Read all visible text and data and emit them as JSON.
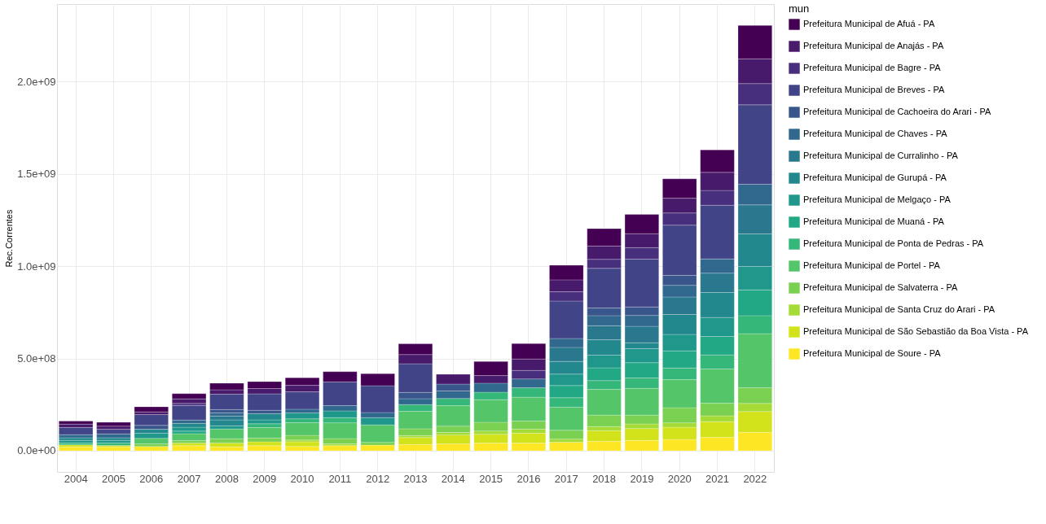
{
  "chart_data": {
    "type": "bar",
    "stacked": true,
    "ylabel": "Rec.Correntes",
    "legend_title": "mun",
    "legend": "right",
    "grid": true,
    "categories": [
      "2004",
      "2005",
      "2006",
      "2007",
      "2008",
      "2009",
      "2010",
      "2011",
      "2012",
      "2013",
      "2014",
      "2015",
      "2016",
      "2017",
      "2018",
      "2019",
      "2020",
      "2021",
      "2022"
    ],
    "ylim": [
      -115000000,
      2420000000
    ],
    "yticks": [
      {
        "value": 0,
        "label": "0.0e+00"
      },
      {
        "value": 500000000,
        "label": "5.0e+08"
      },
      {
        "value": 1000000000,
        "label": "1.0e+09"
      },
      {
        "value": 1500000000,
        "label": "1.5e+09"
      },
      {
        "value": 2000000000,
        "label": "2.0e+09"
      }
    ],
    "series": [
      {
        "name": "Prefeitura Municipal de Soure - PA",
        "color": "#fde725",
        "values": [
          21000000,
          21000000,
          23000000,
          27000000,
          21000000,
          27000000,
          23000000,
          27000000,
          30000000,
          34000000,
          37000000,
          41000000,
          41000000,
          46000000,
          51000000,
          56000000,
          61000000,
          72000000,
          100000000
        ]
      },
      {
        "name": "Prefeitura Municipal de São Sebastião da Boa Vista - PA",
        "color": "#d2e21b",
        "values": [
          11000000,
          7000000,
          null,
          14000000,
          21000000,
          21000000,
          25000000,
          null,
          null,
          37000000,
          48000000,
          48000000,
          54000000,
          null,
          58000000,
          64000000,
          66000000,
          85000000,
          112000000
        ]
      },
      {
        "name": "Prefeitura Municipal de Santa Cruz do Arari - PA",
        "color": "#a5db36",
        "values": [
          null,
          null,
          null,
          null,
          null,
          null,
          10000000,
          10000000,
          null,
          11000000,
          14000000,
          18000000,
          22000000,
          17000000,
          22000000,
          25000000,
          24000000,
          32000000,
          44000000
        ]
      },
      {
        "name": "Prefeitura Municipal de Salvaterra - PA",
        "color": "#7ad151",
        "values": [
          null,
          null,
          14000000,
          14000000,
          23000000,
          21000000,
          25000000,
          29000000,
          15000000,
          37000000,
          34000000,
          47000000,
          44000000,
          48000000,
          62000000,
          48000000,
          82000000,
          68000000,
          85000000
        ]
      },
      {
        "name": "Prefeitura Municipal de Portel - PA",
        "color": "#54c568",
        "values": [
          null,
          null,
          30000000,
          37000000,
          53000000,
          56000000,
          69000000,
          85000000,
          95000000,
          94000000,
          111000000,
          122000000,
          129000000,
          125000000,
          139000000,
          145000000,
          152000000,
          186000000,
          293000000
        ]
      },
      {
        "name": "Prefeitura Municipal de Ponta de Pedras - PA",
        "color": "#35b779",
        "values": [
          10000000,
          14000000,
          null,
          null,
          null,
          21000000,
          21000000,
          28000000,
          null,
          37000000,
          39000000,
          41000000,
          51000000,
          51000000,
          48000000,
          56000000,
          63000000,
          76000000,
          98000000
        ]
      },
      {
        "name": "Prefeitura Municipal de Muaná - PA",
        "color": "#22a884",
        "values": [
          null,
          null,
          null,
          14000000,
          null,
          null,
          null,
          null,
          null,
          null,
          null,
          null,
          null,
          66000000,
          69000000,
          83000000,
          93000000,
          100000000,
          139000000
        ]
      },
      {
        "name": "Prefeitura Municipal de Melgaço - PA",
        "color": "#1f988b",
        "values": [
          14000000,
          14000000,
          28000000,
          21000000,
          17000000,
          21000000,
          32000000,
          37000000,
          39000000,
          null,
          null,
          null,
          null,
          62000000,
          69000000,
          76000000,
          89000000,
          103000000,
          127000000
        ]
      },
      {
        "name": "Prefeitura Municipal de Gurupá - PA",
        "color": "#23888e",
        "values": [
          14000000,
          14000000,
          21000000,
          21000000,
          32000000,
          34000000,
          null,
          null,
          null,
          null,
          null,
          null,
          null,
          69000000,
          83000000,
          32000000,
          108000000,
          135000000,
          177000000
        ]
      },
      {
        "name": "Prefeitura Municipal de Curralinho - PA",
        "color": "#2a788e",
        "values": [
          null,
          null,
          null,
          null,
          21000000,
          null,
          null,
          null,
          null,
          null,
          null,
          null,
          null,
          76000000,
          76000000,
          89000000,
          95000000,
          105000000,
          157000000
        ]
      },
      {
        "name": "Prefeitura Municipal de Chaves - PA",
        "color": "#31688e",
        "values": [
          17000000,
          21000000,
          null,
          18000000,
          17000000,
          null,
          20000000,
          28000000,
          28000000,
          32000000,
          41000000,
          49000000,
          48000000,
          48000000,
          55000000,
          59000000,
          63000000,
          77000000,
          112000000
        ]
      },
      {
        "name": "Prefeitura Municipal de Cachoeira do Arari - PA",
        "color": "#39568c",
        "values": [
          null,
          null,
          21000000,
          null,
          18000000,
          18000000,
          null,
          null,
          null,
          34000000,
          37000000,
          null,
          null,
          null,
          41000000,
          46000000,
          54000000,
          null,
          null
        ]
      },
      {
        "name": "Prefeitura Municipal de Breves - PA",
        "color": "#414487",
        "values": [
          39000000,
          25000000,
          59000000,
          79000000,
          83000000,
          89000000,
          94000000,
          129000000,
          145000000,
          155000000,
          null,
          null,
          null,
          203000000,
          215000000,
          259000000,
          272000000,
          291000000,
          430000000
        ]
      },
      {
        "name": "Prefeitura Municipal de Bagre - PA",
        "color": "#472f7d",
        "values": [
          null,
          null,
          null,
          11000000,
          null,
          null,
          null,
          null,
          null,
          null,
          null,
          null,
          46000000,
          50000000,
          49000000,
          62000000,
          66000000,
          80000000,
          115000000
        ]
      },
      {
        "name": "Prefeitura Municipal de Anajás - PA",
        "color": "#481a6c",
        "values": [
          18000000,
          17000000,
          14000000,
          25000000,
          24000000,
          29000000,
          35000000,
          null,
          null,
          50000000,
          53000000,
          41000000,
          62000000,
          65000000,
          72000000,
          76000000,
          80000000,
          98000000,
          134000000
        ]
      },
      {
        "name": "Prefeitura Municipal de Afuá - PA",
        "color": "#440154",
        "values": [
          17000000,
          21000000,
          28000000,
          28000000,
          36000000,
          37000000,
          41000000,
          55000000,
          65000000,
          58000000,
          null,
          76000000,
          83000000,
          79000000,
          94000000,
          104000000,
          105000000,
          122000000,
          181000000
        ]
      }
    ]
  }
}
